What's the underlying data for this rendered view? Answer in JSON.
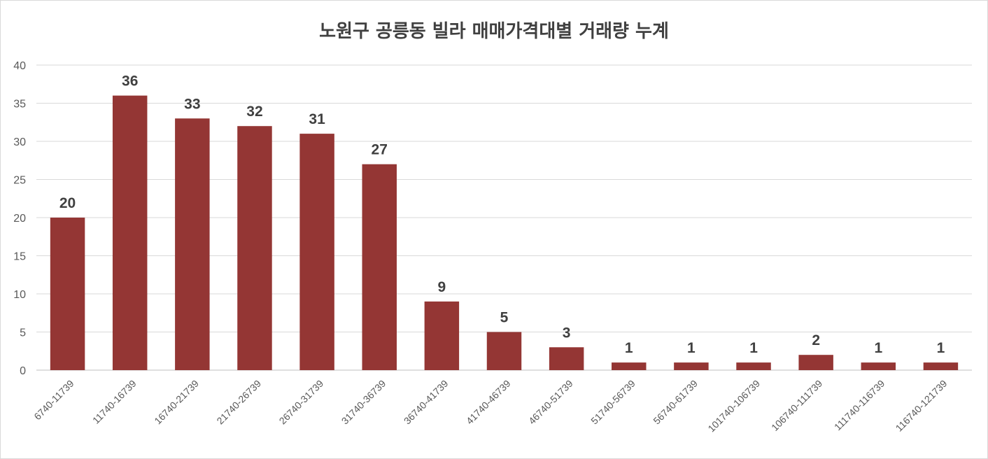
{
  "chart_data": {
    "type": "bar",
    "title": "노원구 공릉동 빌라 매매가격대별 거래량 누계",
    "xlabel": "",
    "ylabel": "",
    "ylim": [
      0,
      40
    ],
    "yticks": [
      0,
      5,
      10,
      15,
      20,
      25,
      30,
      35,
      40
    ],
    "grid": true,
    "legend": "none",
    "bar_color": "#943634",
    "categories": [
      "6740-11739",
      "11740-16739",
      "16740-21739",
      "21740-26739",
      "26740-31739",
      "31740-36739",
      "36740-41739",
      "41740-46739",
      "46740-51739",
      "51740-56739",
      "56740-61739",
      "101740-106739",
      "106740-111739",
      "111740-116739",
      "116740-121739"
    ],
    "values": [
      20,
      36,
      33,
      32,
      31,
      27,
      9,
      5,
      3,
      1,
      1,
      1,
      2,
      1,
      1
    ],
    "data_labels": [
      "20",
      "36",
      "33",
      "32",
      "31",
      "27",
      "9",
      "5",
      "3",
      "1",
      "1",
      "1",
      "2",
      "1",
      "1"
    ]
  }
}
